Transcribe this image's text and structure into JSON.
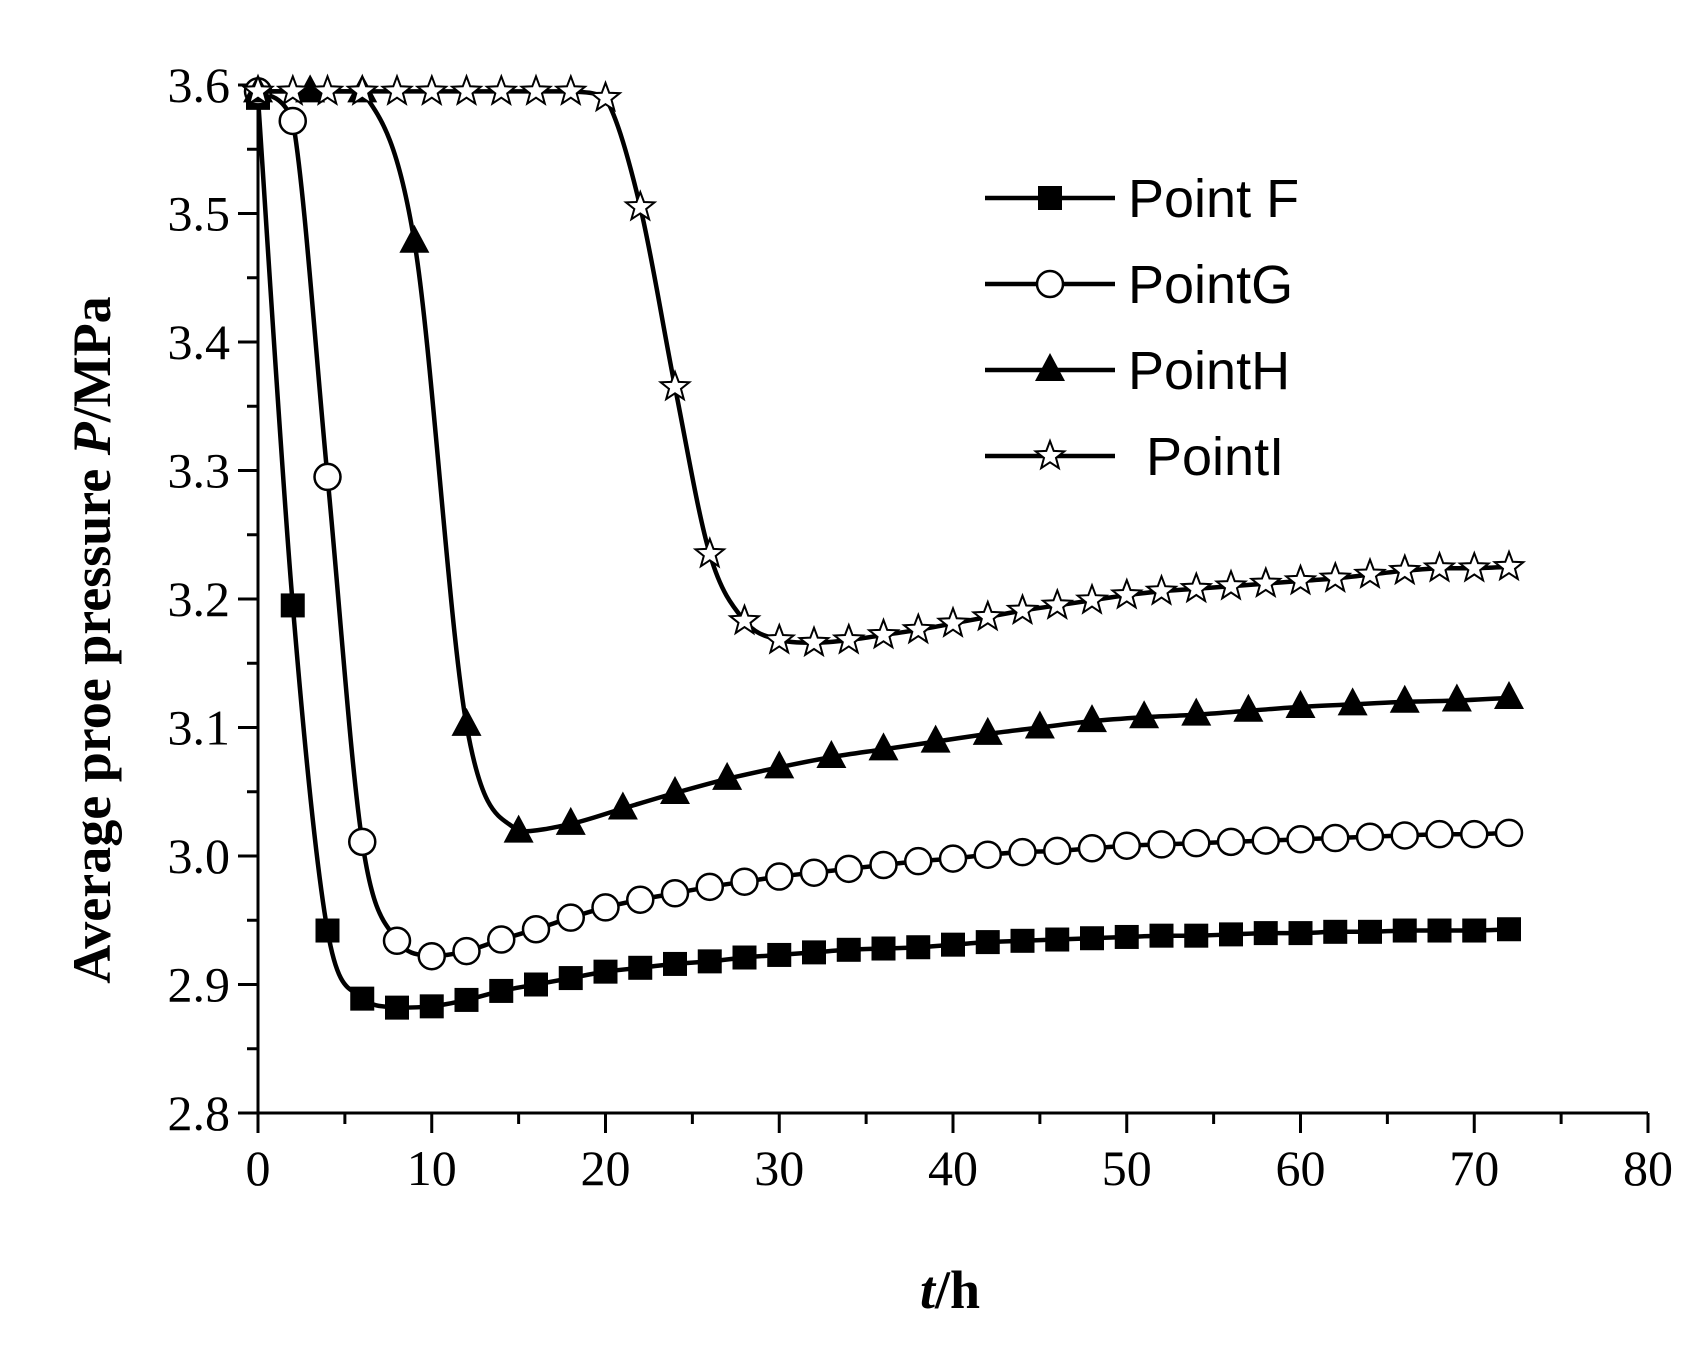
{
  "chart_data": {
    "type": "line",
    "xlabel_italic": "t",
    "xlabel_rest": "/h",
    "ylabel_prefix": "Average proe pressure ",
    "ylabel_italic": "P",
    "ylabel_rest": "/MPa",
    "xlim": [
      0,
      80
    ],
    "ylim": [
      2.8,
      3.6
    ],
    "xticks": [
      "0",
      "10",
      "20",
      "30",
      "40",
      "50",
      "60",
      "70",
      "80"
    ],
    "yticks": [
      "2.8",
      "2.9",
      "3.0",
      "3.1",
      "3.2",
      "3.3",
      "3.4",
      "3.5",
      "3.6"
    ],
    "grid": false,
    "legend_position": "top-right",
    "series": [
      {
        "name": "Point F",
        "marker": "filled-square",
        "x": [
          0,
          2,
          4,
          6,
          8,
          10,
          12,
          14,
          16,
          18,
          20,
          22,
          24,
          26,
          28,
          30,
          32,
          34,
          36,
          38,
          40,
          42,
          44,
          46,
          48,
          50,
          52,
          54,
          56,
          58,
          60,
          62,
          64,
          66,
          68,
          70,
          72
        ],
        "y": [
          3.59,
          3.195,
          2.942,
          2.889,
          2.882,
          2.883,
          2.888,
          2.895,
          2.9,
          2.905,
          2.91,
          2.913,
          2.916,
          2.918,
          2.921,
          2.923,
          2.925,
          2.927,
          2.928,
          2.929,
          2.931,
          2.933,
          2.934,
          2.935,
          2.936,
          2.937,
          2.938,
          2.938,
          2.939,
          2.94,
          2.94,
          2.941,
          2.941,
          2.942,
          2.942,
          2.942,
          2.943
        ]
      },
      {
        "name": "PointG",
        "marker": "open-circle",
        "x": [
          0,
          2,
          4,
          6,
          8,
          10,
          12,
          14,
          16,
          18,
          20,
          22,
          24,
          26,
          28,
          30,
          32,
          34,
          36,
          38,
          40,
          42,
          44,
          46,
          48,
          50,
          52,
          54,
          56,
          58,
          60,
          62,
          64,
          66,
          68,
          70,
          72
        ],
        "y": [
          3.595,
          3.572,
          3.295,
          3.011,
          2.934,
          2.922,
          2.926,
          2.935,
          2.943,
          2.952,
          2.96,
          2.966,
          2.971,
          2.976,
          2.98,
          2.984,
          2.987,
          2.99,
          2.993,
          2.996,
          2.998,
          3.001,
          3.003,
          3.004,
          3.006,
          3.008,
          3.009,
          3.01,
          3.011,
          3.012,
          3.013,
          3.014,
          3.015,
          3.016,
          3.017,
          3.017,
          3.018
        ]
      },
      {
        "name": "PointH",
        "marker": "filled-triangle",
        "x": [
          0,
          3,
          6,
          9,
          12,
          15,
          18,
          21,
          24,
          27,
          30,
          33,
          36,
          39,
          42,
          45,
          48,
          51,
          54,
          57,
          60,
          63,
          66,
          69,
          72
        ],
        "y": [
          3.595,
          3.595,
          3.595,
          3.478,
          3.102,
          3.019,
          3.025,
          3.037,
          3.049,
          3.06,
          3.069,
          3.077,
          3.083,
          3.089,
          3.095,
          3.1,
          3.105,
          3.108,
          3.11,
          3.113,
          3.116,
          3.118,
          3.12,
          3.121,
          3.123
        ]
      },
      {
        "name": "PointI",
        "marker": "open-star",
        "x": [
          0,
          2,
          4,
          6,
          8,
          10,
          12,
          14,
          16,
          18,
          20,
          22,
          24,
          26,
          28,
          30,
          32,
          34,
          36,
          38,
          40,
          42,
          44,
          46,
          48,
          50,
          52,
          54,
          56,
          58,
          60,
          62,
          64,
          66,
          68,
          70,
          72
        ],
        "y": [
          3.595,
          3.595,
          3.595,
          3.595,
          3.595,
          3.595,
          3.595,
          3.595,
          3.595,
          3.595,
          3.59,
          3.505,
          3.365,
          3.235,
          3.183,
          3.168,
          3.166,
          3.168,
          3.172,
          3.176,
          3.181,
          3.186,
          3.191,
          3.195,
          3.199,
          3.203,
          3.206,
          3.208,
          3.21,
          3.212,
          3.214,
          3.216,
          3.219,
          3.222,
          3.224,
          3.224,
          3.225
        ]
      }
    ]
  }
}
